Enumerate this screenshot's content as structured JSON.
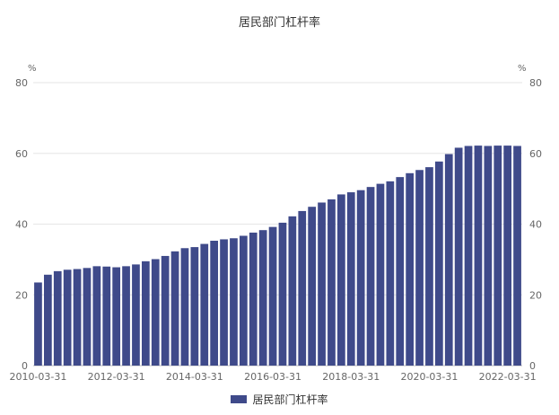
{
  "chart_data": {
    "type": "bar",
    "title": "居民部门杠杆率",
    "y_unit_left": "%",
    "y_unit_right": "%",
    "ylim": [
      0,
      80
    ],
    "yticks": [
      "0",
      "20",
      "40",
      "60",
      "80"
    ],
    "x_tick_labels": [
      "2010-03-31",
      "2012-03-31",
      "2014-03-31",
      "2016-03-31",
      "2018-03-31",
      "2020-03-31",
      "2022-03-31"
    ],
    "x_tick_indices": [
      0,
      8,
      16,
      24,
      32,
      40,
      48
    ],
    "grid": true,
    "legend_position": "bottom-center",
    "color": "#3f4a8a",
    "series": [
      {
        "name": "居民部门杠杆率",
        "values": [
          23.5,
          25.7,
          26.7,
          27.1,
          27.3,
          27.6,
          28.1,
          28.0,
          27.8,
          28.1,
          28.6,
          29.5,
          30.1,
          31.0,
          32.3,
          33.2,
          33.5,
          34.4,
          35.3,
          35.7,
          36.0,
          36.7,
          37.6,
          38.3,
          39.2,
          40.4,
          42.2,
          43.7,
          44.9,
          46.1,
          47.0,
          48.4,
          49.0,
          49.6,
          50.5,
          51.4,
          52.1,
          53.3,
          54.4,
          55.3,
          56.1,
          57.7,
          59.8,
          61.6,
          62.1,
          62.2,
          62.1,
          62.2,
          62.2,
          62.1
        ]
      }
    ]
  }
}
